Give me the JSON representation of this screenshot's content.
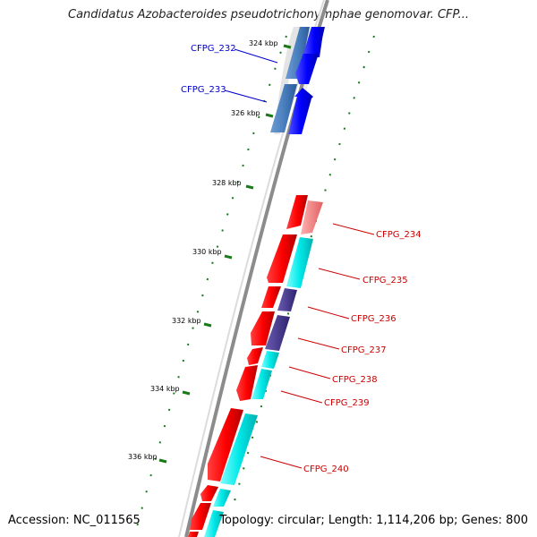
{
  "map": {
    "title": "Candidatus Azobacteroides pseudotrichonymphae genomovar. CFP...",
    "accession": "Accession: NC_011565",
    "summary": "Topology: circular; Length: 1,114,206 bp; Genes: 800"
  },
  "ticks": [
    {
      "label": "324 kbp"
    },
    {
      "label": "326 kbp"
    },
    {
      "label": "328 kbp"
    },
    {
      "label": "330 kbp"
    },
    {
      "label": "332 kbp"
    },
    {
      "label": "334 kbp"
    },
    {
      "label": "336 kbp"
    }
  ],
  "genes": [
    {
      "label": "CFPG_232",
      "color": "#0000cc"
    },
    {
      "label": "CFPG_233",
      "color": "#0000cc"
    },
    {
      "label": "CFPG_234",
      "color": "#cc0000"
    },
    {
      "label": "CFPG_235",
      "color": "#cc0000"
    },
    {
      "label": "CFPG_236",
      "color": "#cc0000"
    },
    {
      "label": "CFPG_237",
      "color": "#cc0000"
    },
    {
      "label": "CFPG_238",
      "color": "#cc0000"
    },
    {
      "label": "CFPG_239",
      "color": "#cc0000"
    },
    {
      "label": "CFPG_240",
      "color": "#cc0000"
    }
  ],
  "colors": {
    "forward_cds": "#1a1aff",
    "reverse_cds": "#ff0000",
    "cog_blue": "#3a6fa8",
    "cog_cyan": "#00e5e5",
    "cog_pink": "#f08080",
    "cog_purple": "#4b3c8c",
    "backbone": "#8c8c8c",
    "gc_dots": "#1a7a1a"
  }
}
